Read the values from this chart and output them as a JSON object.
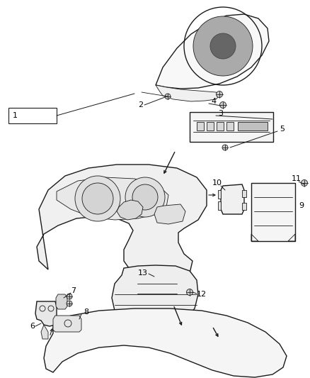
{
  "background_color": "#ffffff",
  "line_color": "#1a1a1a",
  "label_color": "#000000",
  "figsize": [
    4.38,
    5.33
  ],
  "dpi": 100,
  "lw_main": 1.0,
  "lw_thin": 0.6,
  "lw_label": 0.7
}
